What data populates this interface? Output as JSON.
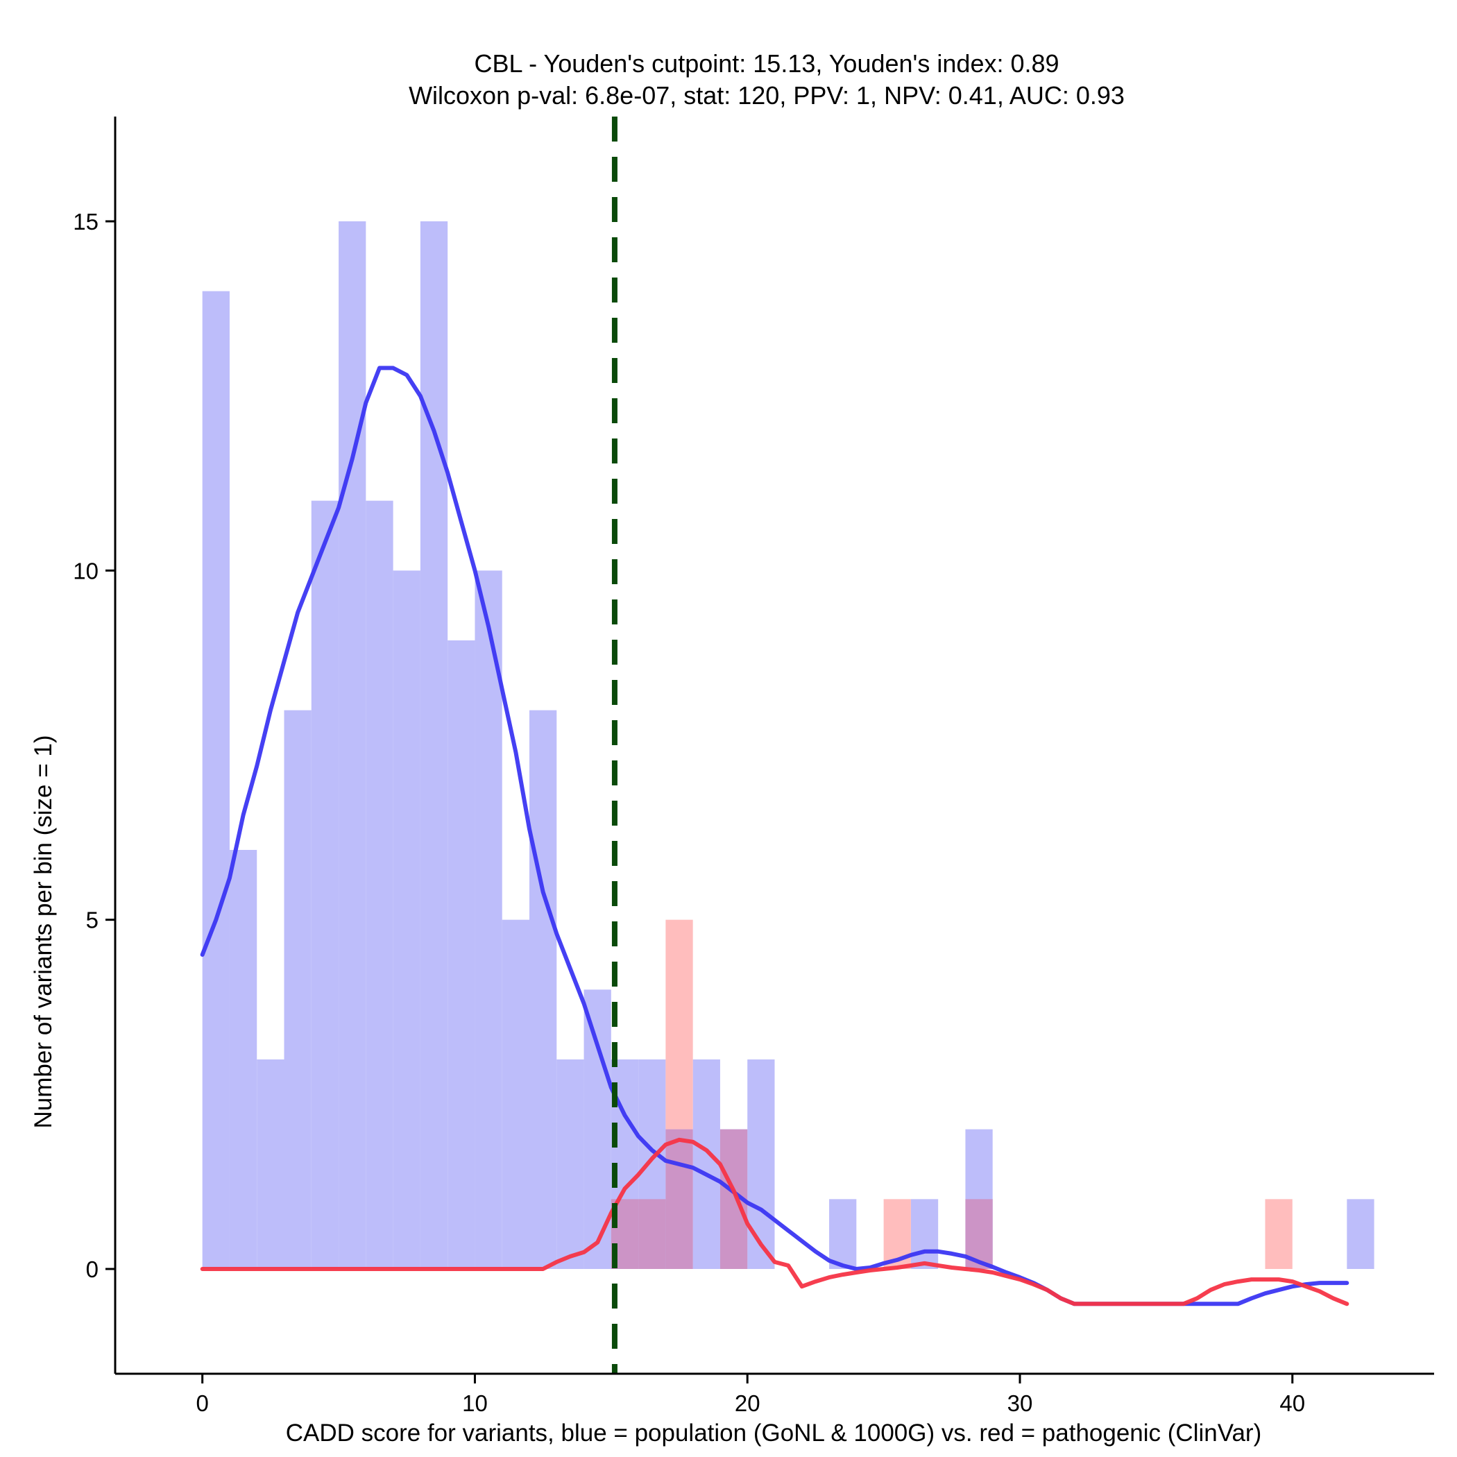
{
  "chart_data": {
    "type": "bar",
    "title_line1": "CBL - Youden's cutpoint: 15.13, Youden's index: 0.89",
    "title_line2": "Wilcoxon p-val: 6.8e-07, stat: 120, PPV: 1, NPV: 0.41, AUC: 0.93",
    "xlabel": "CADD score for variants, blue = population (GoNL & 1000G) vs. red = pathogenic (ClinVar)",
    "ylabel": "Number of variants per bin (size = 1)",
    "xlim": [
      -3.2,
      45.2
    ],
    "ylim": [
      -1.5,
      16.5
    ],
    "x_ticks": [
      0,
      10,
      20,
      30,
      40
    ],
    "y_ticks": [
      0,
      5,
      10,
      15
    ],
    "bin_width": 1,
    "cutpoint": 15.13,
    "colors": {
      "population_bar": "#bdbdfa",
      "pathogenic_bar": "#ffbdbd",
      "overlap_bar": "#cc94c6",
      "population_line": "#3b36f2",
      "pathogenic_line": "#f53446",
      "cutpoint_line": "#0a4a0a"
    },
    "series": [
      {
        "name": "population (GoNL & 1000G)",
        "bins": [
          {
            "start": 0,
            "count": 14
          },
          {
            "start": 1,
            "count": 6
          },
          {
            "start": 2,
            "count": 3
          },
          {
            "start": 3,
            "count": 8
          },
          {
            "start": 4,
            "count": 11
          },
          {
            "start": 5,
            "count": 15
          },
          {
            "start": 6,
            "count": 11
          },
          {
            "start": 7,
            "count": 10
          },
          {
            "start": 8,
            "count": 15
          },
          {
            "start": 9,
            "count": 9
          },
          {
            "start": 10,
            "count": 10
          },
          {
            "start": 11,
            "count": 5
          },
          {
            "start": 12,
            "count": 8
          },
          {
            "start": 13,
            "count": 3
          },
          {
            "start": 14,
            "count": 4
          },
          {
            "start": 15,
            "count": 3
          },
          {
            "start": 16,
            "count": 3
          },
          {
            "start": 17,
            "count": 2
          },
          {
            "start": 18,
            "count": 3
          },
          {
            "start": 19,
            "count": 2
          },
          {
            "start": 20,
            "count": 3
          },
          {
            "start": 23,
            "count": 1
          },
          {
            "start": 26,
            "count": 1
          },
          {
            "start": 28,
            "count": 2
          },
          {
            "start": 42,
            "count": 1
          }
        ],
        "density_curve": [
          [
            0,
            4.5
          ],
          [
            0.5,
            5.0
          ],
          [
            1.0,
            5.6
          ],
          [
            1.5,
            6.5
          ],
          [
            2.0,
            7.2
          ],
          [
            2.5,
            8.0
          ],
          [
            3.0,
            8.7
          ],
          [
            3.5,
            9.4
          ],
          [
            4.0,
            9.9
          ],
          [
            4.5,
            10.4
          ],
          [
            5.0,
            10.9
          ],
          [
            5.5,
            11.6
          ],
          [
            6.0,
            12.4
          ],
          [
            6.5,
            12.9
          ],
          [
            7.0,
            12.9
          ],
          [
            7.5,
            12.8
          ],
          [
            8.0,
            12.5
          ],
          [
            8.5,
            12.0
          ],
          [
            9.0,
            11.4
          ],
          [
            9.5,
            10.7
          ],
          [
            10.0,
            10.0
          ],
          [
            10.5,
            9.2
          ],
          [
            11.0,
            8.3
          ],
          [
            11.5,
            7.4
          ],
          [
            12.0,
            6.3
          ],
          [
            12.5,
            5.4
          ],
          [
            13.0,
            4.8
          ],
          [
            13.5,
            4.3
          ],
          [
            14.0,
            3.8
          ],
          [
            14.5,
            3.2
          ],
          [
            15.0,
            2.6
          ],
          [
            15.5,
            2.2
          ],
          [
            16.0,
            1.9
          ],
          [
            16.5,
            1.7
          ],
          [
            17.0,
            1.55
          ],
          [
            17.5,
            1.5
          ],
          [
            18.0,
            1.45
          ],
          [
            18.5,
            1.35
          ],
          [
            19.0,
            1.25
          ],
          [
            19.5,
            1.1
          ],
          [
            20.0,
            0.95
          ],
          [
            20.5,
            0.85
          ],
          [
            21.0,
            0.7
          ],
          [
            21.5,
            0.55
          ],
          [
            22.0,
            0.4
          ],
          [
            22.5,
            0.25
          ],
          [
            23.0,
            0.12
          ],
          [
            23.5,
            0.05
          ],
          [
            24.0,
            0.0
          ],
          [
            24.5,
            0.02
          ],
          [
            25.0,
            0.08
          ],
          [
            25.5,
            0.13
          ],
          [
            26.0,
            0.2
          ],
          [
            26.5,
            0.25
          ],
          [
            27.0,
            0.25
          ],
          [
            27.5,
            0.22
          ],
          [
            28.0,
            0.18
          ],
          [
            28.5,
            0.1
          ],
          [
            29.0,
            0.03
          ],
          [
            29.5,
            -0.05
          ],
          [
            30.0,
            -0.12
          ],
          [
            30.5,
            -0.2
          ],
          [
            31.0,
            -0.3
          ],
          [
            31.5,
            -0.42
          ],
          [
            32.0,
            -0.5
          ],
          [
            33.0,
            -0.5
          ],
          [
            34.0,
            -0.5
          ],
          [
            35.0,
            -0.5
          ],
          [
            36.0,
            -0.5
          ],
          [
            37.0,
            -0.5
          ],
          [
            38.0,
            -0.5
          ],
          [
            38.5,
            -0.42
          ],
          [
            39.0,
            -0.35
          ],
          [
            39.5,
            -0.3
          ],
          [
            40.0,
            -0.25
          ],
          [
            40.5,
            -0.22
          ],
          [
            41.0,
            -0.2
          ],
          [
            41.5,
            -0.2
          ],
          [
            42.0,
            -0.2
          ]
        ]
      },
      {
        "name": "pathogenic (ClinVar)",
        "bins": [
          {
            "start": 15,
            "count": 1
          },
          {
            "start": 16,
            "count": 1
          },
          {
            "start": 17,
            "count": 5
          },
          {
            "start": 19,
            "count": 2
          },
          {
            "start": 25,
            "count": 1
          },
          {
            "start": 28,
            "count": 1
          },
          {
            "start": 39,
            "count": 1
          }
        ],
        "density_curve": [
          [
            0,
            0
          ],
          [
            2,
            0
          ],
          [
            4,
            0
          ],
          [
            6,
            0
          ],
          [
            8,
            0
          ],
          [
            10,
            0
          ],
          [
            12,
            0
          ],
          [
            12.5,
            0.0
          ],
          [
            13.0,
            0.1
          ],
          [
            13.5,
            0.18
          ],
          [
            14.0,
            0.24
          ],
          [
            14.5,
            0.38
          ],
          [
            15.0,
            0.8
          ],
          [
            15.5,
            1.15
          ],
          [
            16.0,
            1.35
          ],
          [
            16.5,
            1.58
          ],
          [
            17.0,
            1.78
          ],
          [
            17.5,
            1.85
          ],
          [
            18.0,
            1.82
          ],
          [
            18.5,
            1.7
          ],
          [
            19.0,
            1.5
          ],
          [
            19.5,
            1.12
          ],
          [
            20.0,
            0.65
          ],
          [
            20.5,
            0.35
          ],
          [
            21.0,
            0.1
          ],
          [
            21.5,
            0.05
          ],
          [
            22.0,
            -0.25
          ],
          [
            22.5,
            -0.18
          ],
          [
            23.0,
            -0.12
          ],
          [
            23.5,
            -0.08
          ],
          [
            24.0,
            -0.05
          ],
          [
            24.5,
            -0.02
          ],
          [
            25.0,
            0.0
          ],
          [
            25.5,
            0.02
          ],
          [
            26.0,
            0.05
          ],
          [
            26.5,
            0.08
          ],
          [
            27.0,
            0.05
          ],
          [
            27.5,
            0.02
          ],
          [
            28.0,
            0.0
          ],
          [
            28.5,
            -0.02
          ],
          [
            29.0,
            -0.05
          ],
          [
            29.5,
            -0.1
          ],
          [
            30.0,
            -0.15
          ],
          [
            30.5,
            -0.22
          ],
          [
            31.0,
            -0.3
          ],
          [
            31.5,
            -0.42
          ],
          [
            32.0,
            -0.5
          ],
          [
            33.0,
            -0.5
          ],
          [
            34.0,
            -0.5
          ],
          [
            35.0,
            -0.5
          ],
          [
            36.0,
            -0.5
          ],
          [
            36.5,
            -0.42
          ],
          [
            37.0,
            -0.3
          ],
          [
            37.5,
            -0.22
          ],
          [
            38.0,
            -0.18
          ],
          [
            38.5,
            -0.15
          ],
          [
            39.0,
            -0.15
          ],
          [
            39.5,
            -0.15
          ],
          [
            40.0,
            -0.18
          ],
          [
            40.5,
            -0.25
          ],
          [
            41.0,
            -0.32
          ],
          [
            41.5,
            -0.42
          ],
          [
            42.0,
            -0.5
          ]
        ]
      }
    ]
  }
}
